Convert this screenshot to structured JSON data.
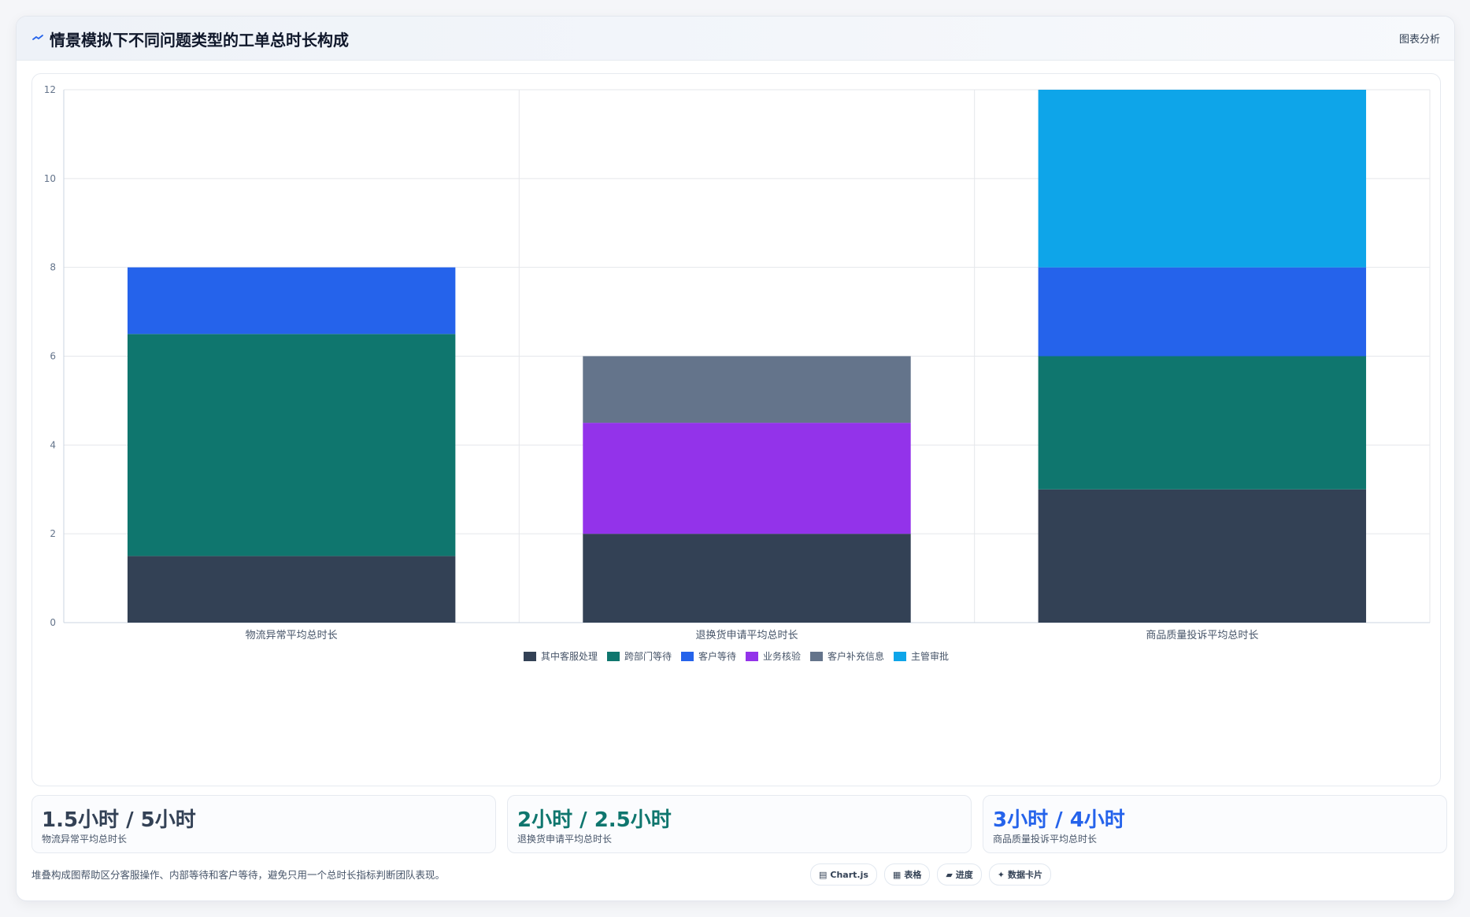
{
  "header": {
    "title": "情景模拟下不同问题类型的工单总时长构成",
    "badge": "图表分析"
  },
  "chart_data": {
    "type": "bar",
    "stacked": true,
    "categories": [
      "物流异常平均总时长",
      "退换货申请平均总时长",
      "商品质量投诉平均总时长"
    ],
    "ylim": [
      0,
      12
    ],
    "yticks": [
      "0",
      "2",
      "4",
      "6",
      "8",
      "10",
      "12"
    ],
    "grid": true,
    "legend_position": "bottom",
    "series": [
      {
        "name": "其中客服处理",
        "color": "#334155",
        "values": [
          1.5,
          2,
          3
        ]
      },
      {
        "name": "跨部门等待",
        "color": "#0f766e",
        "values": [
          5,
          0,
          3
        ]
      },
      {
        "name": "客户等待",
        "color": "#2563eb",
        "values": [
          1.5,
          0,
          2
        ]
      },
      {
        "name": "业务核验",
        "color": "#9333ea",
        "values": [
          0,
          2.5,
          0
        ]
      },
      {
        "name": "客户补充信息",
        "color": "#64748b",
        "values": [
          0,
          1.5,
          0
        ]
      },
      {
        "name": "主管审批",
        "color": "#0ea5e9",
        "values": [
          0,
          0,
          4
        ]
      }
    ]
  },
  "stats": [
    {
      "value": "1.5小时 / 5小时",
      "label": "物流异常平均总时长",
      "color": "#334155"
    },
    {
      "value": "2小时 / 2.5小时",
      "label": "退换货申请平均总时长",
      "color": "#0f766e"
    },
    {
      "value": "3小时 / 4小时",
      "label": "商品质量投诉平均总时长",
      "color": "#2563eb"
    }
  ],
  "footnote": "堆叠构成图帮助区分客服操作、内部等待和客户等待，避免只用一个总时长指标判断团队表现。",
  "chips": [
    {
      "icon": "chart-icon",
      "glyph": "▤",
      "label": "Chart.js"
    },
    {
      "icon": "table-icon",
      "glyph": "▦",
      "label": "表格"
    },
    {
      "icon": "progress-icon",
      "glyph": "▰",
      "label": "进度"
    },
    {
      "icon": "card-icon",
      "glyph": "✦",
      "label": "数据卡片"
    }
  ]
}
